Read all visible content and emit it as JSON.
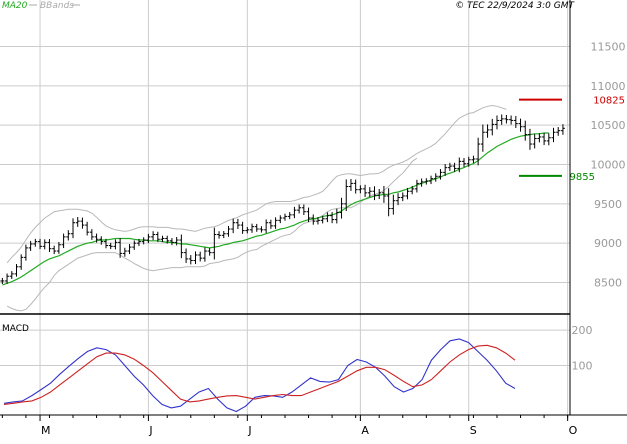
{
  "header": {
    "legend_ma": "MA20",
    "legend_bb": "BBands",
    "copyright": "© TEC 22/9/2024 3:0 GMT"
  },
  "colors": {
    "price_bar": "#000000",
    "ma20": "#22aa22",
    "bbands": "#b8b8b8",
    "resistance": "#cc0000",
    "support": "#008800",
    "macd_line": "#3333cc",
    "signal_line": "#cc2222",
    "grid": "#cccccc",
    "legend_ma": "#22aa22",
    "legend_bb": "#aaaaaa"
  },
  "chart_data": [
    {
      "type": "line",
      "subtype": "ohlc-bar",
      "title": "",
      "ylim": [
        8100,
        11900
      ],
      "y_ticks": [
        8500,
        9000,
        9500,
        10000,
        10500,
        11000,
        11500
      ],
      "y_tick_labels": [
        "8500",
        "9000",
        "9500",
        "10000",
        "10500",
        "11000",
        "11500"
      ],
      "x_month_labels": [
        {
          "label": "M",
          "bar": 8
        },
        {
          "label": "J",
          "bar": 31
        },
        {
          "label": "J",
          "bar": 52
        },
        {
          "label": "A",
          "bar": 76
        },
        {
          "label": "S",
          "bar": 99
        },
        {
          "label": "O",
          "bar": 120
        }
      ],
      "total_slots": 121,
      "levels": [
        {
          "name": "resistance",
          "value": 10825,
          "label": "10825"
        },
        {
          "name": "support",
          "value": 9855,
          "label": "9855"
        }
      ],
      "close": [
        8520,
        8580,
        8610,
        8700,
        8820,
        8940,
        8990,
        9020,
        8960,
        9010,
        8930,
        8900,
        8980,
        9080,
        9120,
        9260,
        9280,
        9230,
        9140,
        9080,
        9050,
        9020,
        8970,
        8960,
        9010,
        8870,
        8900,
        8950,
        9000,
        9020,
        9040,
        9080,
        9110,
        9050,
        9060,
        9030,
        9010,
        9040,
        8880,
        8800,
        8780,
        8850,
        8810,
        8900,
        8880,
        9110,
        9100,
        9120,
        9180,
        9260,
        9230,
        9160,
        9170,
        9210,
        9180,
        9170,
        9260,
        9220,
        9290,
        9320,
        9340,
        9360,
        9420,
        9450,
        9400,
        9320,
        9280,
        9290,
        9310,
        9350,
        9300,
        9390,
        9500,
        9720,
        9760,
        9680,
        9690,
        9640,
        9660,
        9610,
        9640,
        9600,
        9440,
        9540,
        9580,
        9600,
        9660,
        9690,
        9760,
        9780,
        9790,
        9820,
        9850,
        9900,
        9960,
        9980,
        9950,
        10040,
        10010,
        10060,
        10070,
        10260,
        10410,
        10440,
        10510,
        10560,
        10580,
        10570,
        10560,
        10520,
        10480,
        10380,
        10260,
        10330,
        10350,
        10300,
        10340,
        10410,
        10430,
        10460
      ],
      "range": [
        110,
        100,
        100,
        100,
        110,
        120,
        110,
        100,
        100,
        110,
        120,
        110,
        100,
        120,
        130,
        160,
        150,
        130,
        120,
        110,
        120,
        110,
        100,
        100,
        110,
        160,
        120,
        110,
        100,
        100,
        100,
        110,
        120,
        100,
        100,
        100,
        100,
        110,
        200,
        150,
        140,
        130,
        120,
        130,
        110,
        250,
        120,
        100,
        110,
        150,
        140,
        120,
        100,
        110,
        100,
        100,
        120,
        110,
        110,
        100,
        100,
        100,
        120,
        120,
        120,
        150,
        130,
        120,
        110,
        120,
        130,
        140,
        220,
        260,
        160,
        140,
        130,
        150,
        150,
        180,
        140,
        250,
        280,
        220,
        160,
        130,
        120,
        110,
        130,
        120,
        100,
        110,
        110,
        120,
        130,
        120,
        120,
        140,
        120,
        110,
        120,
        230,
        280,
        200,
        200,
        180,
        160,
        140,
        150,
        160,
        180,
        220,
        210,
        160,
        140,
        150,
        160,
        160,
        130,
        150
      ],
      "ma20_start": 0,
      "ma20": [
        8470,
        8490,
        8510,
        8540,
        8570,
        8610,
        8650,
        8690,
        8730,
        8770,
        8800,
        8820,
        8840,
        8870,
        8900,
        8930,
        8960,
        8980,
        9000,
        9010,
        9030,
        9040,
        9040,
        9050,
        9060,
        9060,
        9060,
        9060,
        9050,
        9040,
        9040,
        9030,
        9030,
        9030,
        9020,
        9010,
        9010,
        9000,
        8990,
        8990,
        8980,
        8970,
        8960,
        8950,
        8940,
        8950,
        8960,
        8980,
        8990,
        9010,
        9020,
        9030,
        9050,
        9070,
        9090,
        9100,
        9120,
        9140,
        9160,
        9180,
        9190,
        9210,
        9230,
        9260,
        9280,
        9300,
        9310,
        9320,
        9340,
        9350,
        9360,
        9380,
        9410,
        9450,
        9490,
        9520,
        9540,
        9560,
        9580,
        9600,
        9610,
        9620,
        9620,
        9640,
        9650,
        9670,
        9690,
        9710,
        9740,
        9760,
        9780,
        9800,
        9820,
        9840,
        9870,
        9890,
        9910,
        9940,
        9960,
        9990,
        10010,
        10050,
        10100,
        10150,
        10190,
        10230,
        10260,
        10290,
        10320,
        10340,
        10360,
        10370,
        10380,
        10390,
        10390,
        10400,
        10400
      ],
      "bb_start": 1,
      "bb_upper": [
        8750,
        8820,
        8880,
        8950,
        9040,
        9130,
        9200,
        9260,
        9320,
        9360,
        9400,
        9410,
        9420,
        9430,
        9430,
        9430,
        9420,
        9410,
        9380,
        9330,
        9270,
        9220,
        9190,
        9170,
        9160,
        9150,
        9160,
        9180,
        9200,
        9210,
        9210,
        9210,
        9200,
        9200,
        9200,
        9190,
        9180,
        9180,
        9170,
        9160,
        9150,
        9170,
        9190,
        9200,
        9210,
        9230,
        9260,
        9290,
        9310,
        9330,
        9360,
        9380,
        9400,
        9420,
        9460,
        9500,
        9520,
        9530,
        9530,
        9530,
        9530,
        9540,
        9560,
        9580,
        9590,
        9610,
        9630,
        9660,
        9720,
        9790,
        9850,
        9870,
        9880,
        9880,
        9870,
        9860,
        9870,
        9880,
        9880,
        9890,
        9920,
        9960,
        9990,
        10010,
        10030,
        10060,
        10100,
        10140,
        10170,
        10200,
        10230,
        10270,
        10330,
        10390,
        10460,
        10530,
        10590,
        10620,
        10650,
        10660,
        10690,
        10720,
        10740,
        10750,
        10740,
        10720,
        10700
      ],
      "bb_lower": [
        8200,
        8170,
        8150,
        8140,
        8160,
        8220,
        8290,
        8370,
        8440,
        8500,
        8590,
        8650,
        8690,
        8730,
        8770,
        8810,
        8830,
        8850,
        8870,
        8880,
        8880,
        8880,
        8880,
        8880,
        8850,
        8810,
        8780,
        8740,
        8710,
        8680,
        8660,
        8650,
        8660,
        8670,
        8680,
        8690,
        8690,
        8690,
        8700,
        8700,
        8700,
        8700,
        8710,
        8740,
        8750,
        8760,
        8780,
        8790,
        8800,
        8820,
        8860,
        8890,
        8910,
        8920,
        8960,
        8990,
        9020,
        9050,
        9080,
        9100,
        9110,
        9150,
        9210,
        9250,
        9270,
        9290,
        9320,
        9350,
        9400,
        9430,
        9440,
        9450,
        9450,
        9450,
        9480,
        9520,
        9560,
        9600,
        9620,
        9640,
        9670,
        9720,
        9780,
        9840,
        9890,
        9960,
        10040,
        10080
      ]
    },
    {
      "type": "line",
      "title": "MACD",
      "ylim": [
        -40,
        240
      ],
      "y_ticks": [
        100,
        200
      ],
      "y_tick_labels": [
        "100",
        "200"
      ],
      "series": [
        {
          "name": "MACD",
          "color_key": "macd_line",
          "values": [
            -7,
            -3,
            0,
            15,
            32,
            50,
            75,
            98,
            120,
            140,
            150,
            145,
            130,
            100,
            70,
            45,
            15,
            -10,
            -20,
            -15,
            5,
            25,
            35,
            5,
            -20,
            -30,
            -15,
            10,
            15,
            14,
            10,
            25,
            45,
            65,
            55,
            53,
            60,
            100,
            117,
            110,
            95,
            70,
            40,
            25,
            35,
            60,
            115,
            145,
            170,
            175,
            165,
            140,
            115,
            85,
            50,
            35
          ]
        },
        {
          "name": "Signal",
          "color_key": "signal_line",
          "values": [
            -10,
            -7,
            -3,
            0,
            10,
            25,
            45,
            65,
            85,
            105,
            125,
            135,
            135,
            130,
            118,
            100,
            80,
            55,
            30,
            5,
            -3,
            0,
            5,
            10,
            14,
            15,
            10,
            5,
            10,
            15,
            18,
            15,
            15,
            25,
            35,
            45,
            55,
            70,
            85,
            95,
            95,
            88,
            72,
            55,
            40,
            45,
            60,
            85,
            110,
            130,
            145,
            155,
            157,
            150,
            135,
            115
          ]
        }
      ]
    }
  ]
}
